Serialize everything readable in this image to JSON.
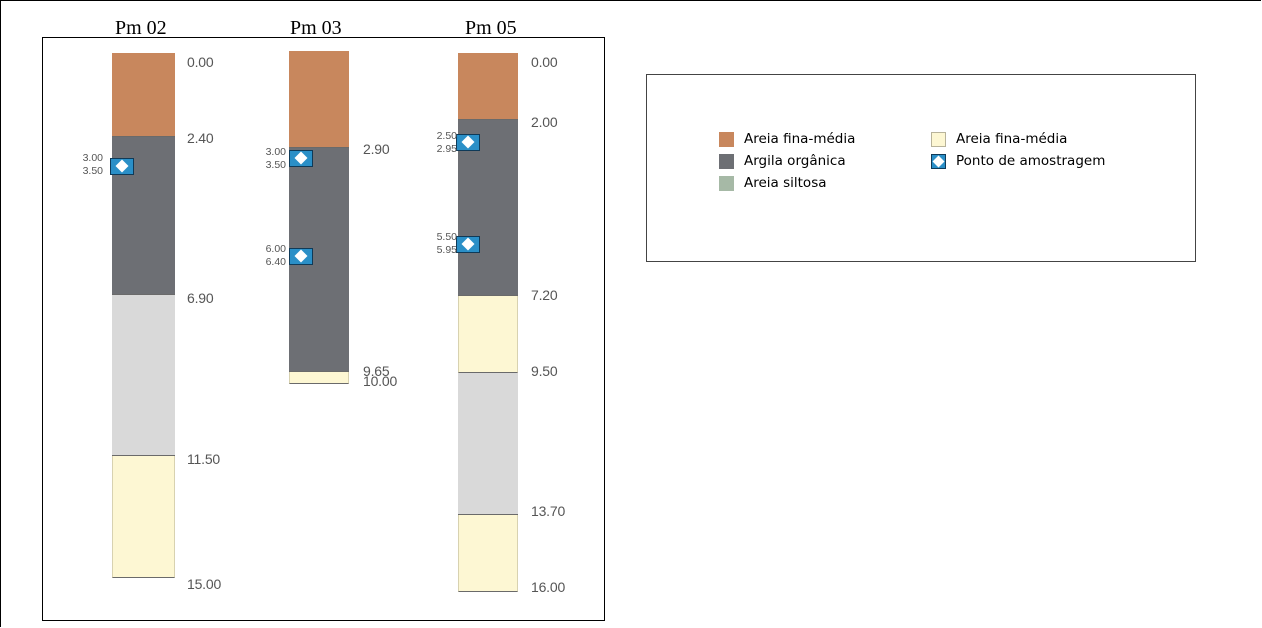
{
  "profiles": [
    {
      "name": "Pm 02",
      "layers": [
        {
          "top": 0.0,
          "bottom": 2.4,
          "material": "areia_fina_media_brown"
        },
        {
          "top": 2.4,
          "bottom": 6.9,
          "material": "argila_organica"
        },
        {
          "top": 6.9,
          "bottom": 11.5,
          "material": "areia_siltosa"
        },
        {
          "top": 11.5,
          "bottom": 15.0,
          "material": "areia_fina_media_yellow"
        }
      ],
      "depth_labels": [
        "0.00",
        "2.40",
        "6.90",
        "11.50",
        "15.00"
      ],
      "samples": [
        {
          "from": "3.00",
          "to": "3.50"
        }
      ]
    },
    {
      "name": "Pm 03",
      "layers": [
        {
          "top": 0.0,
          "bottom": 2.9,
          "material": "areia_fina_media_brown"
        },
        {
          "top": 2.9,
          "bottom": 9.65,
          "material": "argila_organica"
        },
        {
          "top": 9.65,
          "bottom": 10.0,
          "material": "areia_fina_media_yellow"
        }
      ],
      "depth_labels": [
        "2.90",
        "9.65",
        "10.00"
      ],
      "samples": [
        {
          "from": "3.00",
          "to": "3.50"
        },
        {
          "from": "6.00",
          "to": "6.40"
        }
      ]
    },
    {
      "name": "Pm 05",
      "layers": [
        {
          "top": 0.0,
          "bottom": 2.0,
          "material": "areia_fina_media_brown"
        },
        {
          "top": 2.0,
          "bottom": 7.2,
          "material": "argila_organica"
        },
        {
          "top": 7.2,
          "bottom": 9.5,
          "material": "areia_fina_media_yellow"
        },
        {
          "top": 9.5,
          "bottom": 13.7,
          "material": "areia_siltosa"
        },
        {
          "top": 13.7,
          "bottom": 16.0,
          "material": "areia_fina_media_yellow"
        }
      ],
      "depth_labels": [
        "0.00",
        "2.00",
        "7.20",
        "9.50",
        "13.70",
        "16.00"
      ],
      "samples": [
        {
          "from": "2.50",
          "to": "2.95"
        },
        {
          "from": "5.50",
          "to": "5.95"
        }
      ]
    }
  ],
  "colors": {
    "areia_fina_media_brown": "#c8875d",
    "argila_organica": "#6d6f74",
    "areia_siltosa": "#d9d9d9",
    "areia_fina_media_yellow": "#fdf7d3",
    "sample_fill": "#2a8fc7",
    "legend_siltosa_swatch": "#a6b9a6"
  },
  "legend": {
    "items": [
      {
        "label": "Areia fina-média",
        "swatch": "areia_fina_media_brown"
      },
      {
        "label": "Argila orgânica",
        "swatch": "argila_organica"
      },
      {
        "label": "Areia siltosa",
        "swatch": "legend_siltosa_swatch"
      },
      {
        "label": "Areia fina-média",
        "swatch": "areia_fina_media_yellow"
      },
      {
        "label": "Ponto de amostragem",
        "swatch": "sample-point-icon"
      }
    ]
  }
}
